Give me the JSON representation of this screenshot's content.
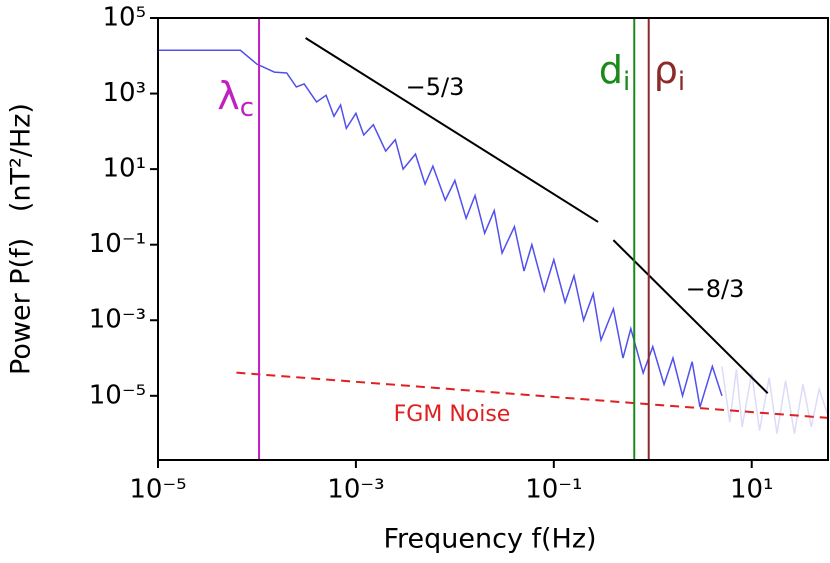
{
  "chart_data": {
    "type": "line",
    "xlabel": "Frequency f(Hz)",
    "ylabel": "Power P(f)   (nT²/Hz)",
    "xscale": "log",
    "yscale": "log",
    "xlim": [
      1e-05,
      59
    ],
    "ylim": [
      2e-07,
      100000.0
    ],
    "xticks": [
      {
        "value": 1e-05,
        "label": "10⁻⁵"
      },
      {
        "value": 0.001,
        "label": "10⁻³"
      },
      {
        "value": 0.1,
        "label": "10⁻¹"
      },
      {
        "value": 10,
        "label": "10¹"
      }
    ],
    "yticks": [
      {
        "value": 100000.0,
        "label": "10⁵"
      },
      {
        "value": 1000.0,
        "label": "10³"
      },
      {
        "value": 10,
        "label": "10¹"
      },
      {
        "value": 0.1,
        "label": "10⁻¹"
      },
      {
        "value": 0.001,
        "label": "10⁻³"
      },
      {
        "value": 1e-05,
        "label": "10⁻⁵"
      }
    ],
    "series": [
      {
        "color": "#5050ee",
        "x": [
          1e-05,
          6.8e-05,
          0.0001,
          0.00015,
          0.0002,
          0.00025,
          0.0003,
          0.0004,
          0.0005,
          0.0006,
          0.0007,
          0.0008,
          0.001,
          0.0012,
          0.0015,
          0.002,
          0.0025,
          0.003,
          0.004,
          0.005,
          0.006,
          0.008,
          0.01,
          0.013,
          0.016,
          0.02,
          0.025,
          0.03,
          0.04,
          0.05,
          0.06,
          0.08,
          0.1,
          0.13,
          0.16,
          0.2,
          0.25,
          0.3,
          0.4,
          0.5,
          0.6,
          0.8,
          1,
          1.3,
          1.6,
          2,
          2.5,
          3,
          4,
          5
        ],
        "values": [
          14000.0,
          14000.0,
          6000.0,
          3700.0,
          3500.0,
          1500.0,
          1800.0,
          600,
          900,
          250,
          500,
          120,
          300,
          80,
          150,
          30,
          60,
          10,
          25,
          4,
          12,
          1.5,
          5,
          0.5,
          2,
          0.2,
          0.8,
          0.06,
          0.3,
          0.02,
          0.1,
          0.006,
          0.04,
          0.003,
          0.015,
          0.001,
          0.005,
          0.0003,
          0.002,
          0.0001,
          0.0006,
          4e-05,
          0.0002,
          2e-05,
          0.0001,
          1e-05,
          8e-05,
          5e-06,
          6e-05,
          1e-05
        ]
      },
      {
        "color": "#dcdcf8",
        "x": [
          5,
          6,
          7,
          8,
          10,
          12,
          15,
          18,
          22,
          27,
          33,
          40,
          48,
          59
        ],
        "values": [
          6e-05,
          2e-06,
          5e-05,
          1.5e-06,
          4e-05,
          1.2e-06,
          3e-05,
          1e-06,
          2.5e-05,
          1e-06,
          2e-05,
          1.5e-06,
          1.5e-05,
          3e-06
        ]
      }
    ],
    "vlines": [
      {
        "label": "λ",
        "subscript": "c",
        "x": 0.000105,
        "color": "#c020c0"
      },
      {
        "label": "d",
        "subscript": "i",
        "x": 0.65,
        "color": "#1a8a1a"
      },
      {
        "label": "ρ",
        "subscript": "i",
        "x": 0.91,
        "color": "#8b2a2a"
      }
    ],
    "slopes": [
      {
        "label": "−5/3",
        "x": [
          0.00031,
          0.28
        ],
        "y": [
          29500.0,
          0.4
        ],
        "color": "#000000"
      },
      {
        "label": "−8/3",
        "x": [
          0.4,
          14.5
        ],
        "y": [
          0.132,
          1.17e-05
        ],
        "color": "#000000"
      }
    ],
    "noise": {
      "label": "FGM Noise",
      "x": [
        6.2e-05,
        59
      ],
      "y": [
        4.1e-05,
        2.6e-06
      ],
      "color": "#e02020"
    }
  }
}
